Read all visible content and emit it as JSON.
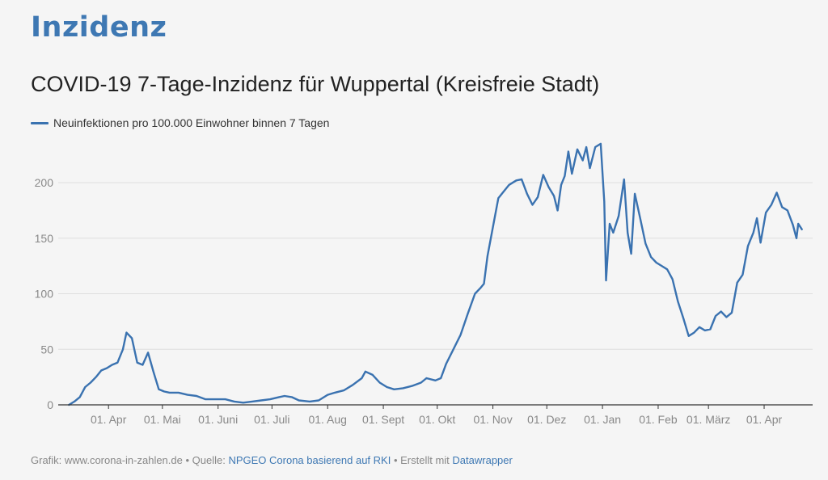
{
  "header": {
    "brand": "Inzidenz",
    "title": "COVID-19 7-Tage-Inzidenz für Wuppertal (Kreisfreie Stadt)"
  },
  "footer": {
    "grafik_label": "Grafik: www.corona-in-zahlen.de",
    "sep1": " • ",
    "quelle_label": "Quelle: ",
    "quelle_link": "NPGEO Corona basierend auf RKI",
    "sep2": " • ",
    "erstellt_label": "Erstellt mit ",
    "erstellt_link": "Datawrapper"
  },
  "colors": {
    "line": "#3a72b0",
    "grid": "#dedede",
    "axis": "#333333"
  },
  "chart_data": {
    "type": "line",
    "title": "COVID-19 7-Tage-Inzidenz für Wuppertal (Kreisfreie Stadt)",
    "xlabel": "",
    "ylabel": "",
    "ylim": [
      0,
      240
    ],
    "yticks": [
      0,
      50,
      100,
      150,
      200
    ],
    "grid": true,
    "legend": "top-left",
    "xticks": [
      {
        "label": "01. Apr",
        "date": "2020-04-01"
      },
      {
        "label": "01. Mai",
        "date": "2020-05-01"
      },
      {
        "label": "01. Juni",
        "date": "2020-06-01"
      },
      {
        "label": "01. Juli",
        "date": "2020-07-01"
      },
      {
        "label": "01. Aug",
        "date": "2020-08-01"
      },
      {
        "label": "01. Sept",
        "date": "2020-09-01"
      },
      {
        "label": "01. Okt",
        "date": "2020-10-01"
      },
      {
        "label": "01. Nov",
        "date": "2020-11-01"
      },
      {
        "label": "01. Dez",
        "date": "2020-12-01"
      },
      {
        "label": "01. Jan",
        "date": "2021-01-01"
      },
      {
        "label": "01. Feb",
        "date": "2021-02-01"
      },
      {
        "label": "01. März",
        "date": "2021-03-01"
      },
      {
        "label": "01. Apr",
        "date": "2021-04-01"
      }
    ],
    "series": [
      {
        "name": "Neuinfektionen pro 100.000 Einwohner binnen 7 Tagen",
        "points": [
          [
            "2020-03-10",
            0
          ],
          [
            "2020-03-13",
            3
          ],
          [
            "2020-03-16",
            7
          ],
          [
            "2020-03-19",
            16
          ],
          [
            "2020-03-22",
            20
          ],
          [
            "2020-03-25",
            25
          ],
          [
            "2020-03-28",
            31
          ],
          [
            "2020-03-31",
            33
          ],
          [
            "2020-04-03",
            36
          ],
          [
            "2020-04-06",
            38
          ],
          [
            "2020-04-09",
            50
          ],
          [
            "2020-04-11",
            65
          ],
          [
            "2020-04-14",
            60
          ],
          [
            "2020-04-17",
            38
          ],
          [
            "2020-04-20",
            36
          ],
          [
            "2020-04-23",
            47
          ],
          [
            "2020-04-26",
            30
          ],
          [
            "2020-04-29",
            14
          ],
          [
            "2020-05-02",
            12
          ],
          [
            "2020-05-05",
            11
          ],
          [
            "2020-05-10",
            11
          ],
          [
            "2020-05-15",
            9
          ],
          [
            "2020-05-20",
            8
          ],
          [
            "2020-05-25",
            5
          ],
          [
            "2020-05-30",
            5
          ],
          [
            "2020-06-05",
            5
          ],
          [
            "2020-06-10",
            3
          ],
          [
            "2020-06-15",
            2
          ],
          [
            "2020-06-20",
            3
          ],
          [
            "2020-06-25",
            4
          ],
          [
            "2020-06-30",
            5
          ],
          [
            "2020-07-05",
            7
          ],
          [
            "2020-07-08",
            8
          ],
          [
            "2020-07-12",
            7
          ],
          [
            "2020-07-16",
            4
          ],
          [
            "2020-07-22",
            3
          ],
          [
            "2020-07-27",
            4
          ],
          [
            "2020-08-01",
            9
          ],
          [
            "2020-08-05",
            11
          ],
          [
            "2020-08-10",
            13
          ],
          [
            "2020-08-15",
            18
          ],
          [
            "2020-08-20",
            24
          ],
          [
            "2020-08-22",
            30
          ],
          [
            "2020-08-26",
            27
          ],
          [
            "2020-08-30",
            20
          ],
          [
            "2020-09-03",
            16
          ],
          [
            "2020-09-07",
            14
          ],
          [
            "2020-09-12",
            15
          ],
          [
            "2020-09-17",
            17
          ],
          [
            "2020-09-22",
            20
          ],
          [
            "2020-09-25",
            24
          ],
          [
            "2020-09-30",
            22
          ],
          [
            "2020-10-03",
            24
          ],
          [
            "2020-10-06",
            37
          ],
          [
            "2020-10-10",
            50
          ],
          [
            "2020-10-14",
            63
          ],
          [
            "2020-10-18",
            82
          ],
          [
            "2020-10-22",
            100
          ],
          [
            "2020-10-25",
            105
          ],
          [
            "2020-10-27",
            109
          ],
          [
            "2020-10-29",
            134
          ],
          [
            "2020-11-01",
            160
          ],
          [
            "2020-11-04",
            186
          ],
          [
            "2020-11-07",
            192
          ],
          [
            "2020-11-10",
            198
          ],
          [
            "2020-11-14",
            202
          ],
          [
            "2020-11-17",
            203
          ],
          [
            "2020-11-20",
            190
          ],
          [
            "2020-11-23",
            180
          ],
          [
            "2020-11-26",
            187
          ],
          [
            "2020-11-29",
            207
          ],
          [
            "2020-12-02",
            196
          ],
          [
            "2020-12-05",
            188
          ],
          [
            "2020-12-07",
            175
          ],
          [
            "2020-12-09",
            198
          ],
          [
            "2020-12-11",
            206
          ],
          [
            "2020-12-13",
            228
          ],
          [
            "2020-12-15",
            208
          ],
          [
            "2020-12-18",
            230
          ],
          [
            "2020-12-21",
            220
          ],
          [
            "2020-12-23",
            232
          ],
          [
            "2020-12-25",
            213
          ],
          [
            "2020-12-28",
            232
          ],
          [
            "2020-12-31",
            235
          ],
          [
            "2021-01-02",
            183
          ],
          [
            "2021-01-03",
            112
          ],
          [
            "2021-01-05",
            163
          ],
          [
            "2021-01-07",
            155
          ],
          [
            "2021-01-10",
            170
          ],
          [
            "2021-01-13",
            203
          ],
          [
            "2021-01-15",
            155
          ],
          [
            "2021-01-17",
            136
          ],
          [
            "2021-01-19",
            190
          ],
          [
            "2021-01-22",
            168
          ],
          [
            "2021-01-25",
            145
          ],
          [
            "2021-01-28",
            133
          ],
          [
            "2021-01-31",
            128
          ],
          [
            "2021-02-03",
            125
          ],
          [
            "2021-02-06",
            122
          ],
          [
            "2021-02-09",
            113
          ],
          [
            "2021-02-12",
            93
          ],
          [
            "2021-02-15",
            78
          ],
          [
            "2021-02-18",
            62
          ],
          [
            "2021-02-21",
            65
          ],
          [
            "2021-02-24",
            70
          ],
          [
            "2021-02-27",
            67
          ],
          [
            "2021-03-02",
            68
          ],
          [
            "2021-03-05",
            80
          ],
          [
            "2021-03-08",
            84
          ],
          [
            "2021-03-11",
            79
          ],
          [
            "2021-03-14",
            83
          ],
          [
            "2021-03-17",
            110
          ],
          [
            "2021-03-20",
            117
          ],
          [
            "2021-03-23",
            143
          ],
          [
            "2021-03-26",
            155
          ],
          [
            "2021-03-28",
            168
          ],
          [
            "2021-03-30",
            146
          ],
          [
            "2021-04-02",
            173
          ],
          [
            "2021-04-05",
            180
          ],
          [
            "2021-04-08",
            191
          ],
          [
            "2021-04-11",
            178
          ],
          [
            "2021-04-14",
            175
          ],
          [
            "2021-04-17",
            162
          ],
          [
            "2021-04-19",
            150
          ],
          [
            "2021-04-20",
            163
          ],
          [
            "2021-04-22",
            158
          ]
        ]
      }
    ]
  }
}
